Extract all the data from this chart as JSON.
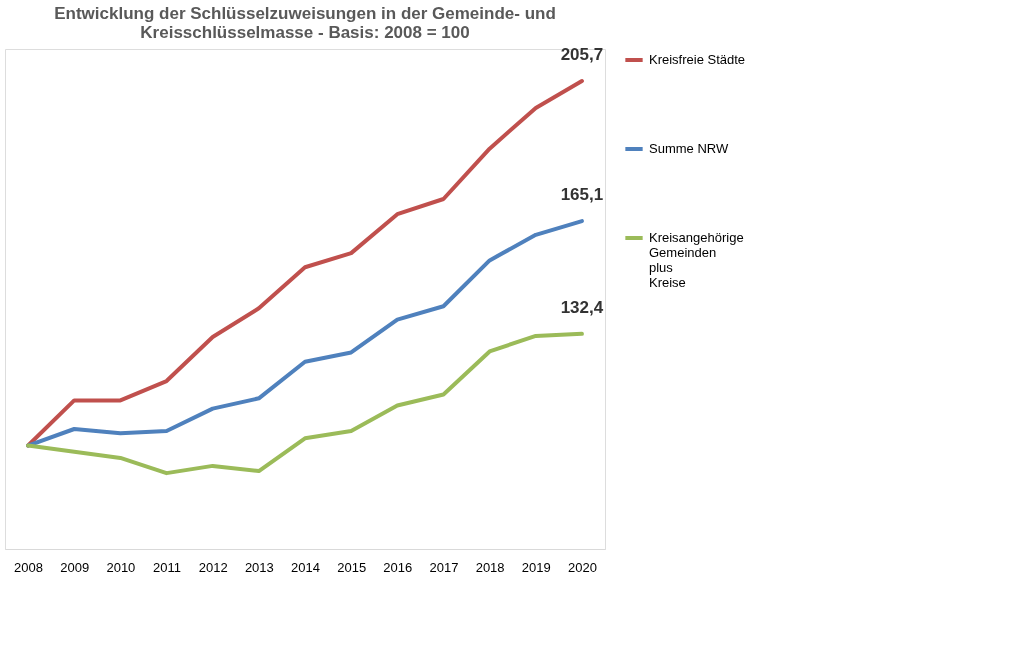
{
  "chart_data": {
    "type": "line",
    "title": [
      "Entwicklung der Schlüsselzuweisungen in der Gemeinde- und",
      "Kreisschlüsselmasse - Basis: 2008 = 100"
    ],
    "categories": [
      "2008",
      "2009",
      "2010",
      "2011",
      "2012",
      "2013",
      "2014",
      "2015",
      "2016",
      "2017",
      "2018",
      "2019",
      "2020"
    ],
    "ylim": [
      70,
      215
    ],
    "tick_labels": "x",
    "grid": false,
    "legend": "right",
    "marker": "none",
    "line_style": "solid",
    "series": [
      {
        "name": "Kreisfreie Städte",
        "color": "#c0504d",
        "values": [
          100,
          113.1,
          113.1,
          118.7,
          131.5,
          139.8,
          151.7,
          155.8,
          167.1,
          171.5,
          186.1,
          197.9,
          205.7
        ],
        "value_labels": [
          null,
          null,
          null,
          null,
          null,
          null,
          null,
          null,
          null,
          null,
          null,
          null,
          "205,7"
        ]
      },
      {
        "name": "Summe NRW",
        "color": "#4f81bd",
        "values": [
          100,
          104.8,
          103.6,
          104.2,
          110.7,
          113.7,
          124.3,
          127.0,
          136.5,
          140.4,
          153.7,
          161.1,
          165.1
        ],
        "value_labels": [
          null,
          null,
          null,
          null,
          null,
          null,
          null,
          null,
          null,
          null,
          null,
          null,
          "165,1"
        ]
      },
      {
        "name": "Kreisangehörige Gemeinden plus Kreise",
        "color": "#9bbb59",
        "values": [
          100,
          98.2,
          96.4,
          92.0,
          94.1,
          92.6,
          102.1,
          104.2,
          111.6,
          114.8,
          127.3,
          131.8,
          132.4
        ],
        "value_labels": [
          null,
          null,
          null,
          null,
          null,
          null,
          null,
          null,
          null,
          null,
          null,
          null,
          "132,4"
        ]
      }
    ]
  }
}
